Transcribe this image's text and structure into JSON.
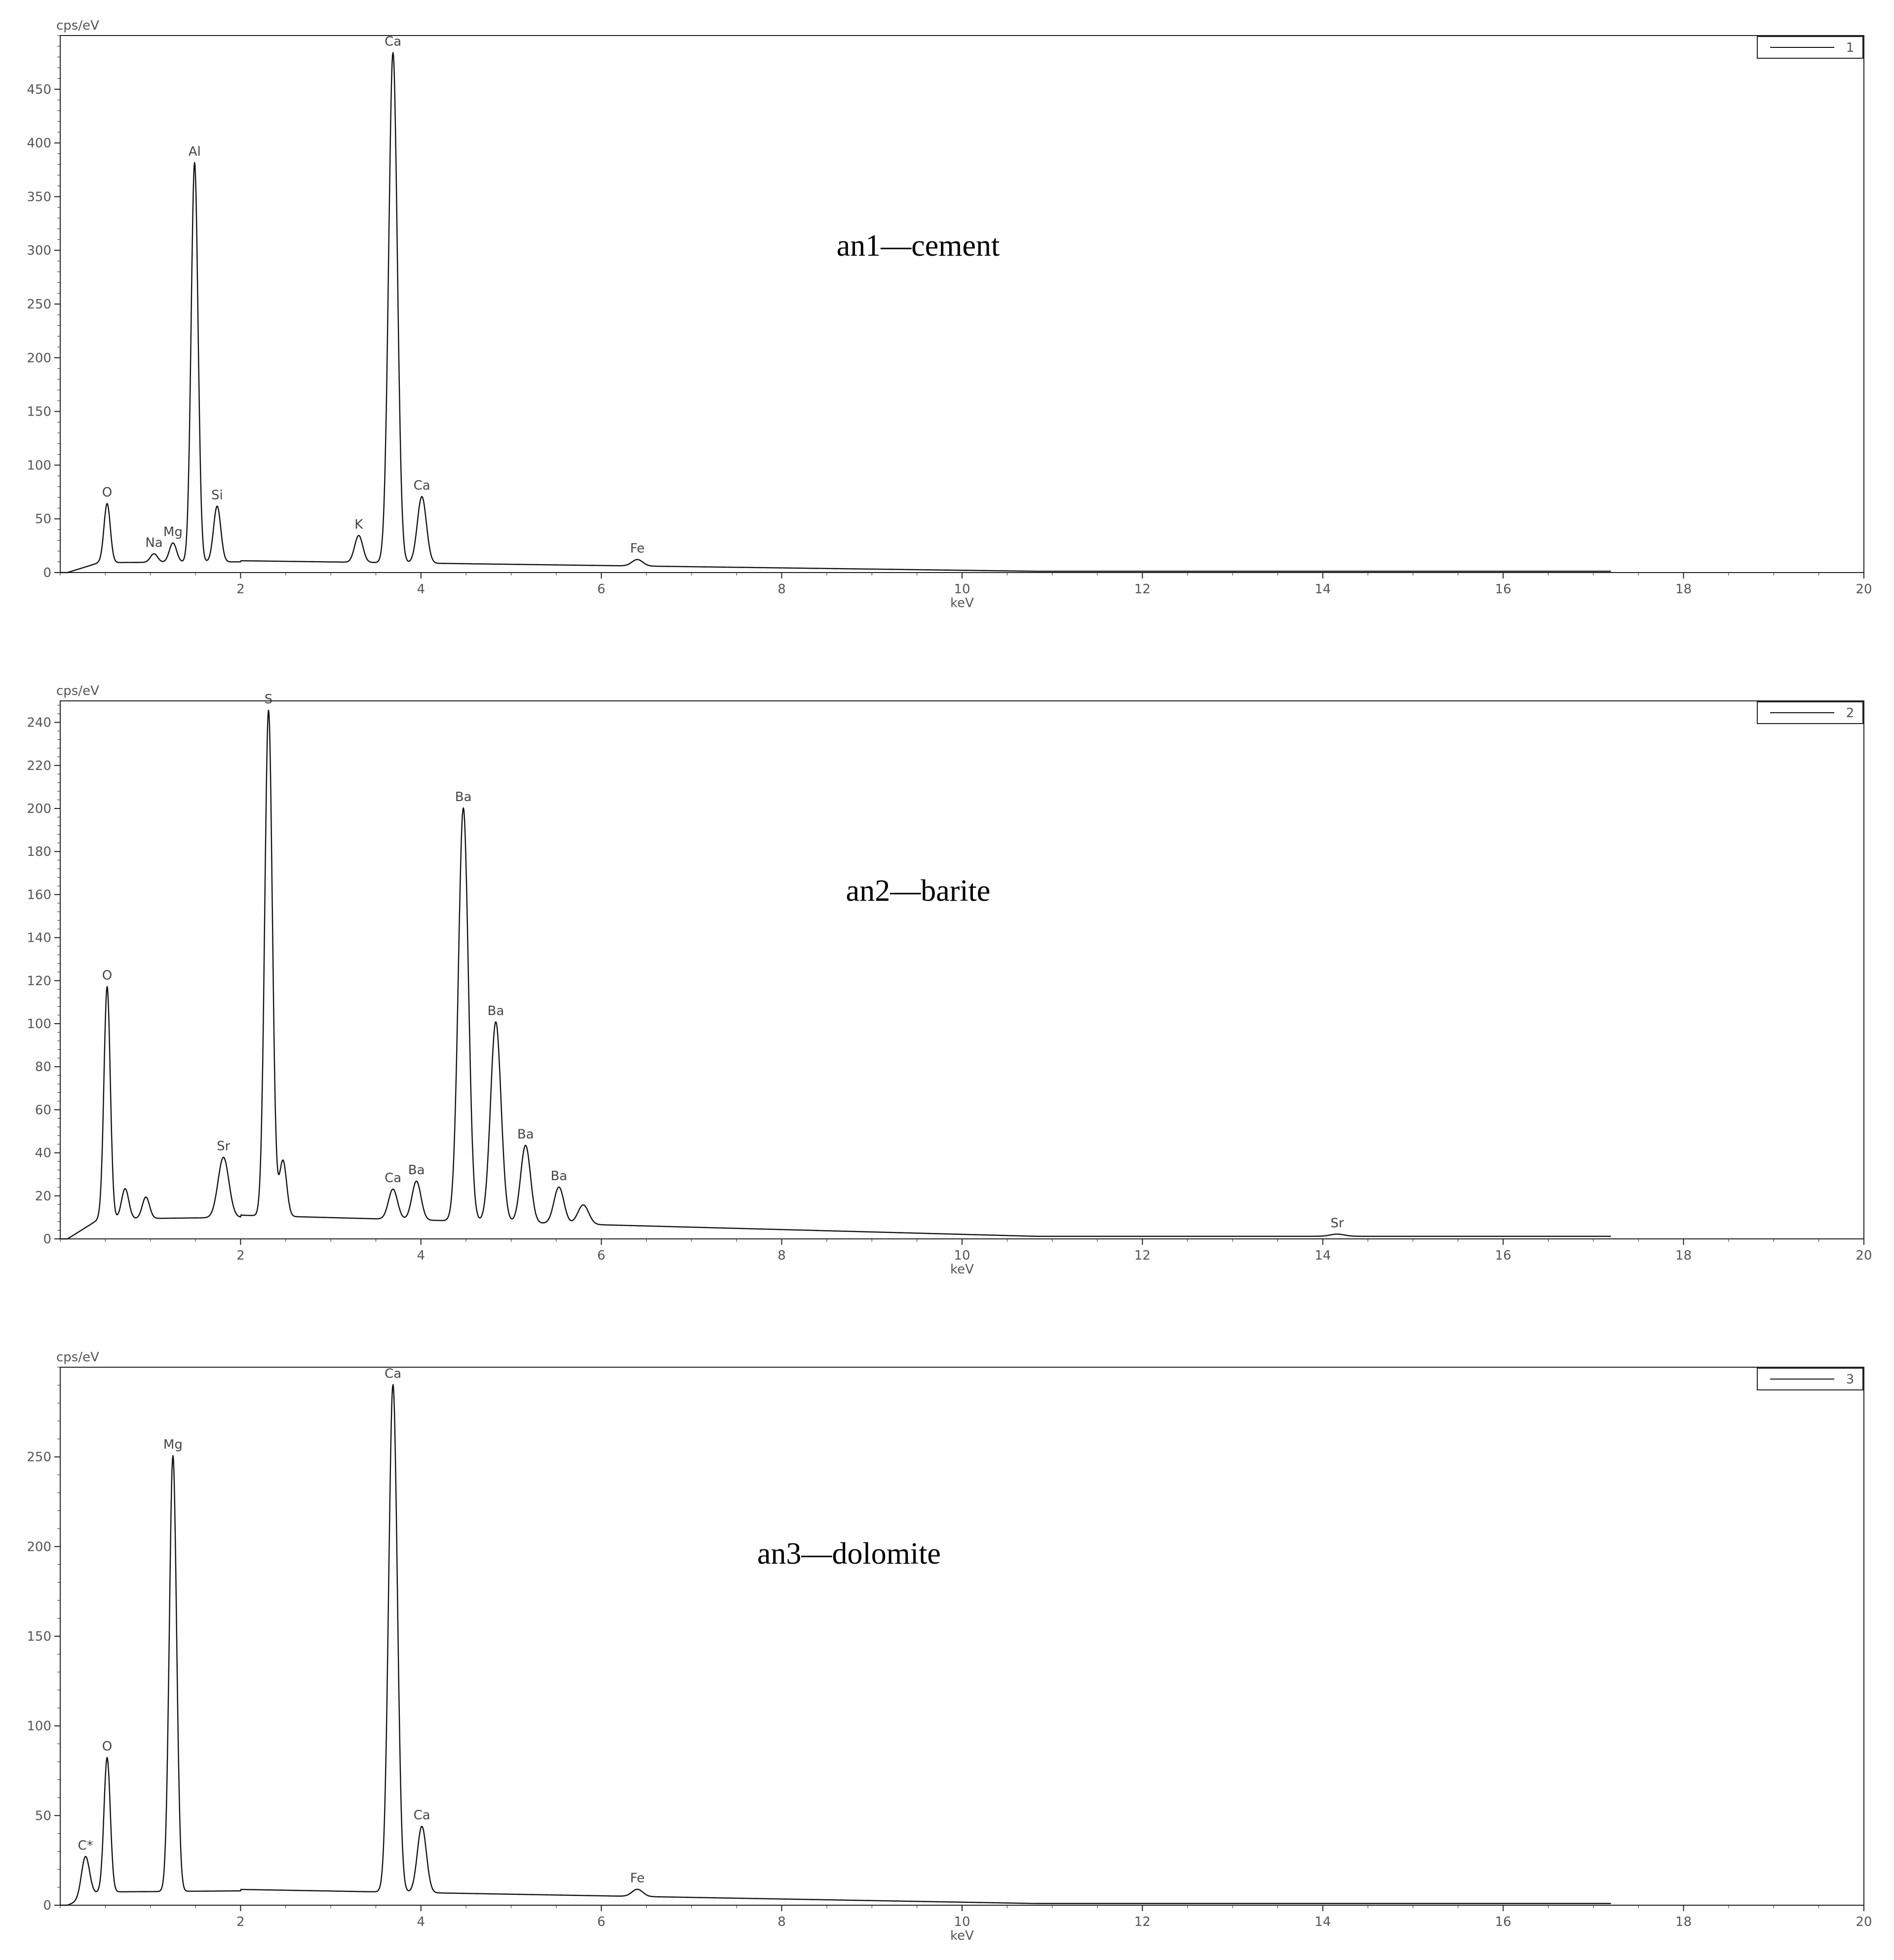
{
  "figure": {
    "line_color": "#111111",
    "frame_color": "#222222",
    "label_color": "#444444"
  },
  "chart_data": [
    {
      "type": "line",
      "title": "an1—cement",
      "ylabel": "cps/eV",
      "xlabel": "keV",
      "legend": "1",
      "legend_position": "top-right",
      "xlim": [
        0,
        20
      ],
      "ylim": [
        0,
        500
      ],
      "x_ticks": [
        2,
        4,
        6,
        8,
        10,
        12,
        14,
        16,
        18,
        20
      ],
      "y_ticks": [
        0,
        50,
        100,
        150,
        200,
        250,
        300,
        350,
        400,
        450
      ],
      "grid": false,
      "background": 10,
      "peaks": [
        {
          "label": "O",
          "x": 0.52,
          "y": 55,
          "w": 0.035
        },
        {
          "label": "Na",
          "x": 1.04,
          "y": 8,
          "w": 0.04
        },
        {
          "label": "Mg",
          "x": 1.25,
          "y": 18,
          "w": 0.04
        },
        {
          "label": "Al",
          "x": 1.49,
          "y": 372,
          "w": 0.038
        },
        {
          "label": "Si",
          "x": 1.74,
          "y": 52,
          "w": 0.04
        },
        {
          "label": "K",
          "x": 3.31,
          "y": 25,
          "w": 0.045
        },
        {
          "label": "Ca",
          "x": 3.69,
          "y": 475,
          "w": 0.048
        },
        {
          "label": "Ca",
          "x": 4.01,
          "y": 62,
          "w": 0.05
        },
        {
          "label": "Fe",
          "x": 6.4,
          "y": 6,
          "w": 0.06
        }
      ]
    },
    {
      "type": "line",
      "title": "an2—barite",
      "ylabel": "cps/eV",
      "xlabel": "keV",
      "legend": "2",
      "legend_position": "top-right",
      "xlim": [
        0,
        20
      ],
      "ylim": [
        0,
        250
      ],
      "x_ticks": [
        2,
        4,
        6,
        8,
        10,
        12,
        14,
        16,
        18,
        20
      ],
      "y_ticks": [
        0,
        20,
        40,
        60,
        80,
        100,
        120,
        140,
        160,
        180,
        200,
        220,
        240
      ],
      "grid": false,
      "background": 10,
      "peaks": [
        {
          "label": "O",
          "x": 0.52,
          "y": 108,
          "w": 0.035
        },
        {
          "label": "",
          "x": 0.72,
          "y": 14,
          "w": 0.04
        },
        {
          "label": "",
          "x": 0.95,
          "y": 10,
          "w": 0.04
        },
        {
          "label": "Sr",
          "x": 1.81,
          "y": 28,
          "w": 0.06
        },
        {
          "label": "S",
          "x": 2.31,
          "y": 235,
          "w": 0.042
        },
        {
          "label": "",
          "x": 2.47,
          "y": 26,
          "w": 0.04
        },
        {
          "label": "Ca",
          "x": 3.69,
          "y": 14,
          "w": 0.05
        },
        {
          "label": "Ba",
          "x": 3.95,
          "y": 18,
          "w": 0.05
        },
        {
          "label": "Ba",
          "x": 4.47,
          "y": 192,
          "w": 0.055
        },
        {
          "label": "Ba",
          "x": 4.83,
          "y": 93,
          "w": 0.058
        },
        {
          "label": "Ba",
          "x": 5.16,
          "y": 36,
          "w": 0.055
        },
        {
          "label": "Ba",
          "x": 5.53,
          "y": 17,
          "w": 0.055
        },
        {
          "label": "",
          "x": 5.8,
          "y": 9,
          "w": 0.06
        },
        {
          "label": "Sr",
          "x": 14.16,
          "y": 1,
          "w": 0.08
        }
      ]
    },
    {
      "type": "line",
      "title": "an3—dolomite",
      "ylabel": "cps/eV",
      "xlabel": "keV",
      "legend": "3",
      "legend_position": "top-right",
      "xlim": [
        0,
        20
      ],
      "ylim": [
        0,
        300
      ],
      "x_ticks": [
        2,
        4,
        6,
        8,
        10,
        12,
        14,
        16,
        18,
        20
      ],
      "y_ticks": [
        0,
        50,
        100,
        150,
        200,
        250
      ],
      "grid": false,
      "background": 8,
      "peaks": [
        {
          "label": "C*",
          "x": 0.28,
          "y": 23,
          "w": 0.045
        },
        {
          "label": "O",
          "x": 0.52,
          "y": 75,
          "w": 0.035
        },
        {
          "label": "Mg",
          "x": 1.25,
          "y": 243,
          "w": 0.04
        },
        {
          "label": "Ca",
          "x": 3.69,
          "y": 283,
          "w": 0.048
        },
        {
          "label": "Ca",
          "x": 4.01,
          "y": 37,
          "w": 0.05
        },
        {
          "label": "Fe",
          "x": 6.4,
          "y": 4,
          "w": 0.06
        }
      ]
    }
  ]
}
